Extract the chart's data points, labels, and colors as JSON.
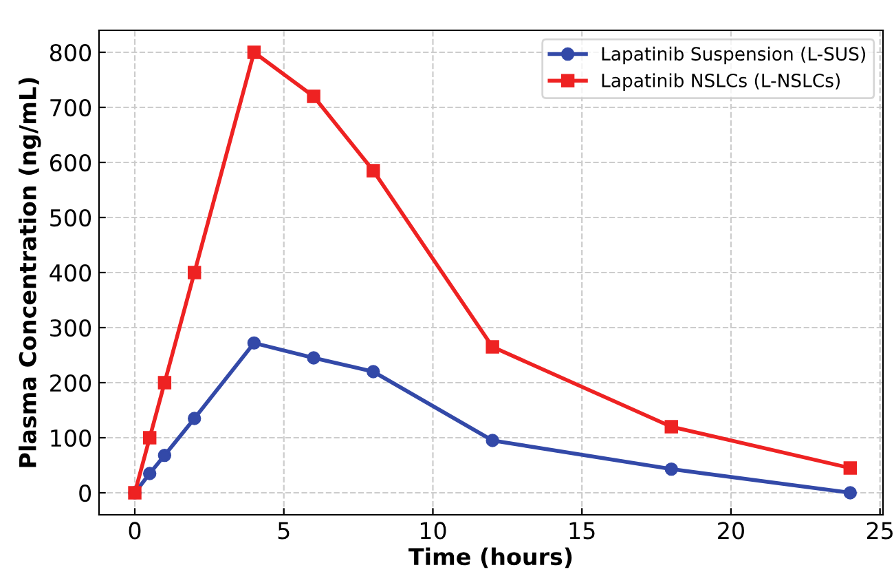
{
  "chart_data": {
    "type": "line",
    "xlabel": "Time (hours)",
    "ylabel": "Plasma Concentration (ng/mL)",
    "x": [
      0,
      0.5,
      1,
      2,
      4,
      6,
      8,
      12,
      18,
      24
    ],
    "series": [
      {
        "name": "Lapatinib Suspension (L-SUS)",
        "color": "#3349a8",
        "marker": "circle",
        "values": [
          0,
          35,
          68,
          135,
          272,
          245,
          220,
          95,
          43,
          0
        ]
      },
      {
        "name": "Lapatinib NSLCs (L-NSLCs)",
        "color": "#ee2222",
        "marker": "square",
        "values": [
          0,
          100,
          200,
          400,
          800,
          720,
          585,
          265,
          120,
          45
        ]
      }
    ],
    "xlim": [
      -1.2,
      25.1
    ],
    "xticks": [
      0,
      5,
      10,
      15,
      20,
      25
    ],
    "ylim": [
      -40,
      840
    ],
    "yticks": [
      0,
      100,
      200,
      300,
      400,
      500,
      600,
      700,
      800
    ],
    "grid": true,
    "legend": "top right",
    "line_style": "solid"
  }
}
